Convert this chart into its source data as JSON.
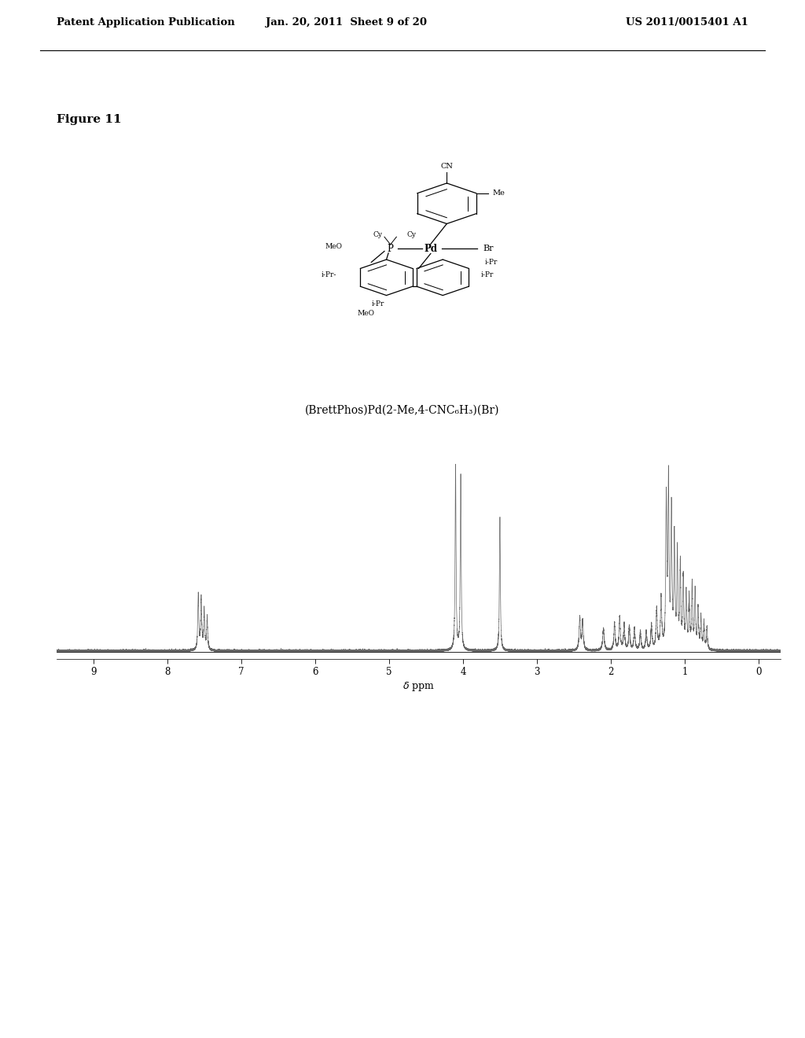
{
  "header_left": "Patent Application Publication",
  "header_center": "Jan. 20, 2011  Sheet 9 of 20",
  "header_right": "US 2011/0015401 A1",
  "figure_label": "Figure 11",
  "caption": "(BrettPhos)Pd(2-Me,4-CNC₆H₃)(Br)",
  "background_color": "#ffffff",
  "spectrum_color": "#555555",
  "peak_data": [
    [
      7.58,
      0.3,
      0.008
    ],
    [
      7.54,
      0.28,
      0.008
    ],
    [
      7.5,
      0.22,
      0.008
    ],
    [
      7.46,
      0.18,
      0.008
    ],
    [
      4.1,
      1.0,
      0.007
    ],
    [
      4.03,
      0.95,
      0.007
    ],
    [
      3.5,
      0.72,
      0.007
    ],
    [
      2.42,
      0.18,
      0.01
    ],
    [
      2.38,
      0.16,
      0.01
    ],
    [
      2.1,
      0.12,
      0.012
    ],
    [
      1.95,
      0.15,
      0.01
    ],
    [
      1.88,
      0.18,
      0.01
    ],
    [
      1.82,
      0.14,
      0.01
    ],
    [
      1.75,
      0.13,
      0.01
    ],
    [
      1.68,
      0.12,
      0.01
    ],
    [
      1.6,
      0.1,
      0.01
    ],
    [
      1.52,
      0.1,
      0.01
    ],
    [
      1.45,
      0.14,
      0.01
    ],
    [
      1.38,
      0.22,
      0.01
    ],
    [
      1.32,
      0.28,
      0.01
    ],
    [
      1.25,
      0.8,
      0.008
    ],
    [
      1.22,
      0.9,
      0.008
    ],
    [
      1.18,
      0.75,
      0.008
    ],
    [
      1.14,
      0.6,
      0.008
    ],
    [
      1.1,
      0.52,
      0.008
    ],
    [
      1.06,
      0.45,
      0.008
    ],
    [
      1.02,
      0.38,
      0.008
    ],
    [
      0.98,
      0.3,
      0.008
    ],
    [
      0.94,
      0.28,
      0.008
    ],
    [
      0.9,
      0.35,
      0.008
    ],
    [
      0.86,
      0.32,
      0.008
    ],
    [
      0.82,
      0.22,
      0.008
    ],
    [
      0.78,
      0.18,
      0.008
    ],
    [
      0.74,
      0.15,
      0.008
    ],
    [
      0.7,
      0.12,
      0.008
    ]
  ]
}
